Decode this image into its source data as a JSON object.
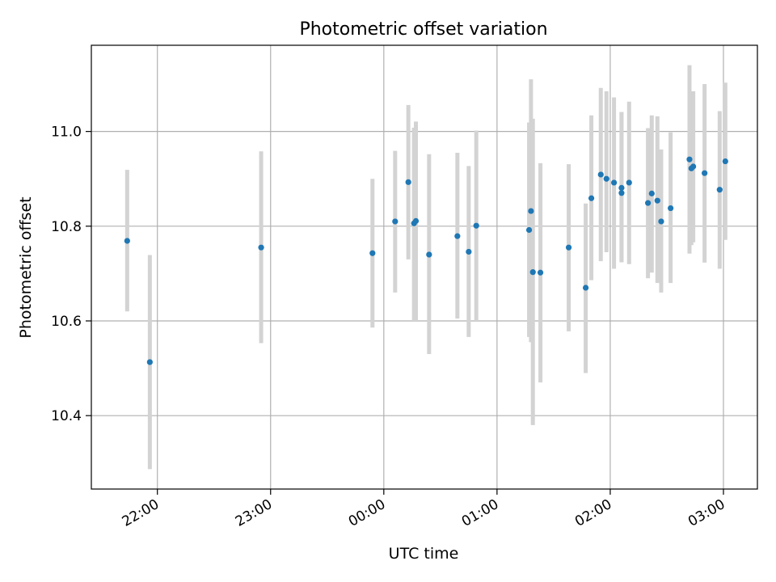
{
  "chart_data": {
    "type": "scatter",
    "title": "Photometric offset variation",
    "xlabel": "UTC time",
    "ylabel": "Photometric offset",
    "x_tick_labels": [
      "22:00",
      "23:00",
      "00:00",
      "01:00",
      "02:00",
      "03:00"
    ],
    "y_tick_labels": [
      "10.4",
      "10.6",
      "10.8",
      "11.0"
    ],
    "x_ticks": [
      "22:00",
      "23:00",
      "00:00",
      "01:00",
      "02:00",
      "03:00"
    ],
    "y_ticks": [
      10.4,
      10.6,
      10.8,
      11.0
    ],
    "x_axis": {
      "start": "21:25",
      "end": "03:18",
      "wraps_midnight": true
    },
    "ylim": [
      10.245,
      11.182
    ],
    "grid": true,
    "marker_color": "#1f77b4",
    "errorbar_color": "#d3d3d3",
    "points": [
      {
        "x": "21:44",
        "y": 10.769,
        "yerr_low": 10.62,
        "yerr_high": 10.919
      },
      {
        "x": "21:56",
        "y": 10.513,
        "yerr_low": 10.287,
        "yerr_high": 10.739
      },
      {
        "x": "22:55",
        "y": 10.755,
        "yerr_low": 10.553,
        "yerr_high": 10.958
      },
      {
        "x": "23:54",
        "y": 10.743,
        "yerr_low": 10.586,
        "yerr_high": 10.9
      },
      {
        "x": "00:06",
        "y": 10.81,
        "yerr_low": 10.66,
        "yerr_high": 10.959
      },
      {
        "x": "00:13",
        "y": 10.893,
        "yerr_low": 10.73,
        "yerr_high": 11.056
      },
      {
        "x": "00:16",
        "y": 10.806,
        "yerr_low": 10.6,
        "yerr_high": 11.008
      },
      {
        "x": "00:17",
        "y": 10.811,
        "yerr_low": 10.6,
        "yerr_high": 11.021
      },
      {
        "x": "00:24",
        "y": 10.74,
        "yerr_low": 10.53,
        "yerr_high": 10.952
      },
      {
        "x": "00:39",
        "y": 10.779,
        "yerr_low": 10.605,
        "yerr_high": 10.955
      },
      {
        "x": "00:45",
        "y": 10.746,
        "yerr_low": 10.566,
        "yerr_high": 10.927
      },
      {
        "x": "00:49",
        "y": 10.801,
        "yerr_low": 10.6,
        "yerr_high": 11.002
      },
      {
        "x": "01:17",
        "y": 10.792,
        "yerr_low": 10.566,
        "yerr_high": 11.019
      },
      {
        "x": "01:18",
        "y": 10.832,
        "yerr_low": 10.555,
        "yerr_high": 11.11
      },
      {
        "x": "01:19",
        "y": 10.703,
        "yerr_low": 10.38,
        "yerr_high": 11.027
      },
      {
        "x": "01:23",
        "y": 10.702,
        "yerr_low": 10.47,
        "yerr_high": 10.933
      },
      {
        "x": "01:38",
        "y": 10.755,
        "yerr_low": 10.578,
        "yerr_high": 10.931
      },
      {
        "x": "01:47",
        "y": 10.67,
        "yerr_low": 10.49,
        "yerr_high": 10.848
      },
      {
        "x": "01:50",
        "y": 10.859,
        "yerr_low": 10.686,
        "yerr_high": 11.034
      },
      {
        "x": "01:55",
        "y": 10.909,
        "yerr_low": 10.726,
        "yerr_high": 11.092
      },
      {
        "x": "01:58",
        "y": 10.9,
        "yerr_low": 10.745,
        "yerr_high": 11.085
      },
      {
        "x": "02:02",
        "y": 10.892,
        "yerr_low": 10.71,
        "yerr_high": 11.072
      },
      {
        "x": "02:06",
        "y": 10.87,
        "yerr_low": 10.724,
        "yerr_high": 11.041
      },
      {
        "x": "02:06",
        "y": 10.881,
        "yerr_low": 10.724,
        "yerr_high": 11.041
      },
      {
        "x": "02:10",
        "y": 10.892,
        "yerr_low": 10.72,
        "yerr_high": 11.063
      },
      {
        "x": "02:20",
        "y": 10.849,
        "yerr_low": 10.69,
        "yerr_high": 11.007
      },
      {
        "x": "02:22",
        "y": 10.869,
        "yerr_low": 10.702,
        "yerr_high": 11.034
      },
      {
        "x": "02:25",
        "y": 10.854,
        "yerr_low": 10.68,
        "yerr_high": 11.032
      },
      {
        "x": "02:27",
        "y": 10.81,
        "yerr_low": 10.66,
        "yerr_high": 10.962
      },
      {
        "x": "02:32",
        "y": 10.838,
        "yerr_low": 10.68,
        "yerr_high": 10.998
      },
      {
        "x": "02:42",
        "y": 10.941,
        "yerr_low": 10.742,
        "yerr_high": 11.14
      },
      {
        "x": "02:43",
        "y": 10.922,
        "yerr_low": 10.76,
        "yerr_high": 11.083
      },
      {
        "x": "02:44",
        "y": 10.926,
        "yerr_low": 10.766,
        "yerr_high": 11.085
      },
      {
        "x": "02:50",
        "y": 10.912,
        "yerr_low": 10.723,
        "yerr_high": 11.1
      },
      {
        "x": "02:58",
        "y": 10.877,
        "yerr_low": 10.71,
        "yerr_high": 11.043
      },
      {
        "x": "03:01",
        "y": 10.937,
        "yerr_low": 10.771,
        "yerr_high": 11.103
      }
    ]
  }
}
